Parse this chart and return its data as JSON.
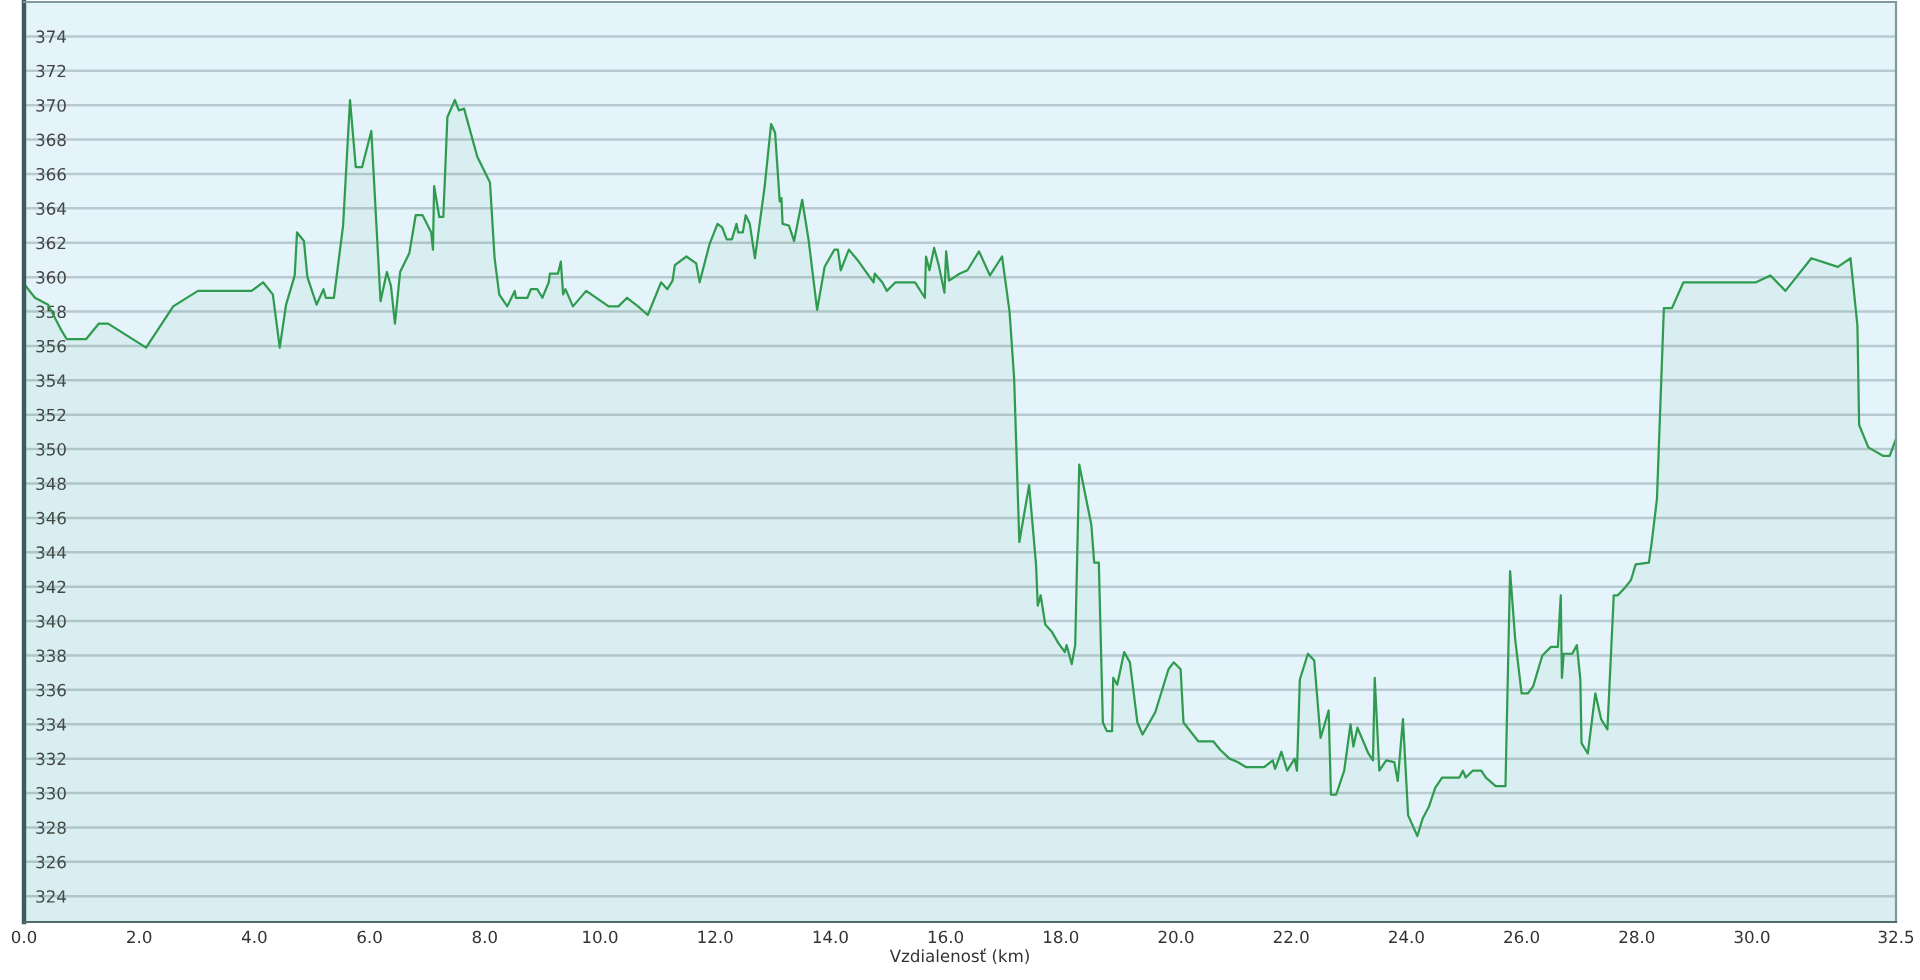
{
  "chart_data": {
    "type": "area",
    "xlabel": "Vzdialenosť (km)",
    "color": "#2e9b4e",
    "grid": "y",
    "xlim": [
      0,
      32.5
    ],
    "xticks": [
      {
        "value": 0,
        "label": "0.0"
      },
      {
        "value": 2,
        "label": "2.0"
      },
      {
        "value": 4,
        "label": "4.0"
      },
      {
        "value": 6,
        "label": "6.0"
      },
      {
        "value": 8,
        "label": "8.0"
      },
      {
        "value": 10,
        "label": "10.0"
      },
      {
        "value": 12,
        "label": "12.0"
      },
      {
        "value": 14,
        "label": "14.0"
      },
      {
        "value": 16,
        "label": "16.0"
      },
      {
        "value": 18,
        "label": "18.0"
      },
      {
        "value": 20,
        "label": "20.0"
      },
      {
        "value": 22,
        "label": "22.0"
      },
      {
        "value": 24,
        "label": "24.0"
      },
      {
        "value": 26,
        "label": "26.0"
      },
      {
        "value": 28,
        "label": "28.0"
      },
      {
        "value": 30,
        "label": "30.0"
      },
      {
        "value": 32.5,
        "label": "32.5"
      }
    ],
    "ylim": [
      322.5,
      376
    ],
    "yticks": [
      324,
      326,
      328,
      330,
      332,
      334,
      336,
      338,
      340,
      342,
      344,
      346,
      348,
      350,
      352,
      354,
      356,
      358,
      360,
      362,
      364,
      366,
      368,
      370,
      372,
      374
    ],
    "x": [
      0.0,
      0.19,
      0.42,
      0.65,
      0.74,
      1.08,
      1.3,
      1.46,
      2.12,
      2.59,
      3.02,
      3.95,
      4.15,
      4.32,
      4.44,
      4.55,
      4.7,
      4.74,
      4.86,
      4.92,
      5.08,
      5.2,
      5.24,
      5.38,
      5.54,
      5.66,
      5.76,
      5.87,
      6.03,
      6.19,
      6.3,
      6.37,
      6.44,
      6.53,
      6.69,
      6.8,
      6.92,
      7.07,
      7.1,
      7.12,
      7.21,
      7.28,
      7.35,
      7.48,
      7.55,
      7.64,
      7.87,
      8.09,
      8.17,
      8.25,
      8.39,
      8.52,
      8.54,
      8.74,
      8.8,
      8.91,
      9.0,
      9.11,
      9.13,
      9.27,
      9.32,
      9.36,
      9.4,
      9.53,
      9.76,
      10.15,
      10.32,
      10.47,
      10.66,
      10.83,
      11.06,
      11.17,
      11.26,
      11.3,
      11.5,
      11.67,
      11.73,
      11.9,
      12.04,
      12.12,
      12.2,
      12.29,
      12.37,
      12.4,
      12.48,
      12.53,
      12.6,
      12.69,
      12.86,
      12.97,
      13.04,
      13.12,
      13.15,
      13.17,
      13.28,
      13.37,
      13.51,
      13.62,
      13.77,
      13.9,
      14.07,
      14.13,
      14.18,
      14.32,
      14.47,
      14.64,
      14.75,
      14.77,
      14.9,
      14.98,
      15.13,
      15.47,
      15.64,
      15.66,
      15.72,
      15.8,
      15.88,
      15.98,
      16.01,
      16.06,
      16.24,
      16.38,
      16.58,
      16.77,
      16.98,
      17.11,
      17.19,
      17.28,
      17.45,
      17.57,
      17.6,
      17.65,
      17.73,
      17.84,
      17.96,
      18.07,
      18.1,
      18.19,
      18.25,
      18.32,
      18.53,
      18.58,
      18.66,
      18.73,
      18.8,
      18.89,
      18.91,
      18.98,
      19.1,
      19.2,
      19.33,
      19.42,
      19.64,
      19.87,
      19.96,
      20.08,
      20.13,
      20.39,
      20.65,
      20.77,
      20.93,
      21.07,
      21.22,
      21.53,
      21.68,
      21.72,
      21.83,
      21.93,
      22.06,
      22.1,
      22.15,
      22.29,
      22.4,
      22.51,
      22.65,
      22.69,
      22.78,
      22.92,
      23.03,
      23.08,
      23.15,
      23.34,
      23.42,
      23.45,
      23.53,
      23.65,
      23.79,
      23.85,
      23.94,
      24.03,
      24.19,
      24.28,
      24.39,
      24.5,
      24.62,
      24.92,
      24.98,
      25.03,
      25.15,
      25.3,
      25.38,
      25.55,
      25.72,
      25.8,
      25.89,
      26.0,
      26.11,
      26.2,
      26.36,
      26.51,
      26.63,
      26.68,
      26.7,
      26.73,
      26.88,
      26.96,
      27.02,
      27.04,
      27.15,
      27.28,
      27.38,
      27.49,
      27.6,
      27.67,
      27.81,
      27.9,
      27.98,
      28.21,
      28.26,
      28.35,
      28.47,
      28.61,
      28.81,
      30.07,
      30.32,
      30.58,
      31.03,
      31.49,
      31.71,
      31.83,
      31.86,
      32.02,
      32.28,
      32.39,
      32.5
    ],
    "values": [
      359.6,
      358.8,
      358.4,
      356.9,
      356.4,
      356.4,
      357.3,
      357.3,
      355.9,
      358.3,
      359.2,
      359.2,
      359.7,
      359.0,
      355.9,
      358.4,
      360.1,
      362.6,
      362.1,
      360.0,
      358.4,
      359.3,
      358.8,
      358.8,
      363.0,
      370.3,
      366.4,
      366.4,
      368.5,
      358.6,
      360.3,
      359.5,
      357.3,
      360.3,
      361.4,
      363.6,
      363.6,
      362.6,
      361.6,
      365.3,
      363.5,
      363.5,
      369.3,
      370.3,
      369.7,
      369.8,
      367.0,
      365.5,
      361.1,
      359.0,
      358.3,
      359.2,
      358.8,
      358.8,
      359.3,
      359.3,
      358.8,
      359.7,
      360.2,
      360.2,
      360.9,
      359.0,
      359.3,
      358.3,
      359.2,
      358.3,
      358.3,
      358.8,
      358.3,
      357.8,
      359.7,
      359.3,
      359.8,
      360.7,
      361.2,
      360.8,
      359.7,
      361.9,
      363.1,
      362.9,
      362.2,
      362.2,
      363.1,
      362.6,
      362.6,
      363.6,
      363.1,
      361.1,
      365.3,
      368.9,
      368.4,
      364.4,
      364.6,
      363.1,
      363.0,
      362.1,
      364.5,
      362.2,
      358.1,
      360.6,
      361.6,
      361.6,
      360.4,
      361.6,
      361.0,
      360.2,
      359.7,
      360.2,
      359.7,
      359.2,
      359.7,
      359.7,
      358.8,
      361.2,
      360.4,
      361.7,
      360.7,
      359.1,
      361.5,
      359.8,
      360.2,
      360.4,
      361.5,
      360.1,
      361.2,
      358.0,
      354.1,
      344.6,
      347.9,
      343.3,
      340.9,
      341.5,
      339.8,
      339.4,
      338.7,
      338.2,
      338.6,
      337.5,
      338.6,
      349.1,
      345.6,
      343.4,
      343.4,
      334.1,
      333.6,
      333.6,
      336.7,
      336.3,
      338.2,
      337.6,
      334.1,
      333.4,
      334.7,
      337.2,
      337.6,
      337.2,
      334.1,
      333.0,
      333.0,
      332.5,
      332.0,
      331.8,
      331.5,
      331.5,
      331.9,
      331.4,
      332.4,
      331.3,
      332.0,
      331.3,
      336.6,
      338.1,
      337.7,
      333.2,
      334.8,
      329.9,
      329.9,
      331.3,
      334.0,
      332.7,
      333.8,
      332.3,
      331.9,
      336.7,
      331.3,
      331.9,
      331.8,
      330.7,
      334.3,
      328.7,
      327.5,
      328.5,
      329.2,
      330.3,
      330.9,
      330.9,
      331.3,
      330.9,
      331.3,
      331.3,
      330.9,
      330.4,
      330.4,
      342.9,
      338.9,
      335.8,
      335.8,
      336.2,
      338.0,
      338.5,
      338.5,
      341.5,
      336.7,
      338.1,
      338.1,
      338.6,
      336.6,
      332.9,
      332.3,
      335.8,
      334.3,
      333.7,
      341.5,
      341.5,
      342.0,
      342.4,
      343.3,
      343.4,
      344.6,
      347.1,
      358.2,
      358.2,
      359.7,
      359.7,
      360.1,
      359.2,
      361.1,
      360.6,
      361.1,
      357.2,
      351.4,
      350.1,
      349.6,
      349.6,
      350.6
    ]
  }
}
